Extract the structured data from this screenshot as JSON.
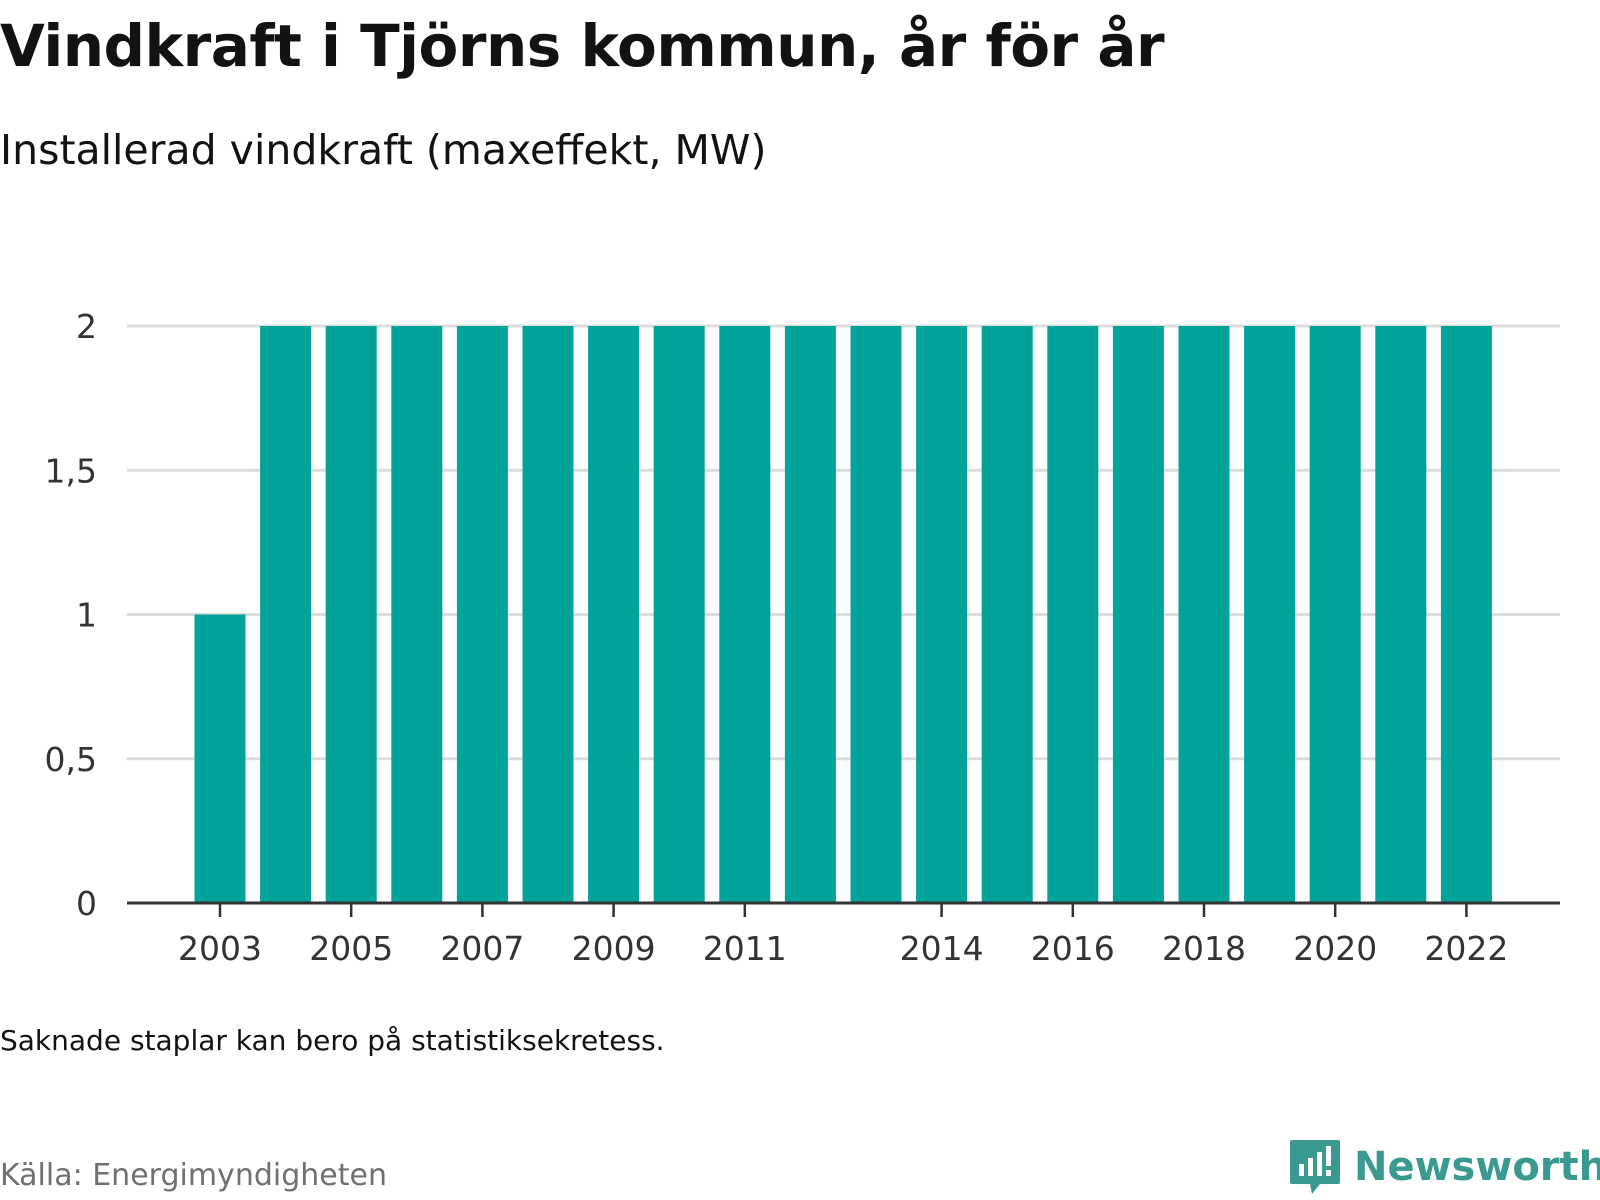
{
  "title": "Vindkraft i Tjörns kommun, år för år",
  "subtitle": "Installerad vindkraft (maxeffekt, MW)",
  "note": "Saknade staplar kan bero på statistiksekretess.",
  "source": "Källa: Energimyndigheten",
  "logo": {
    "text": "Newsworthy",
    "icon": "bar-chart-speech-icon",
    "color": "#3a9a8f"
  },
  "colors": {
    "bar": "#00a39a",
    "grid": "#dcdcdc",
    "axis": "#333333"
  },
  "chart_data": {
    "type": "bar",
    "categories": [
      "2003",
      "2004",
      "2005",
      "2006",
      "2007",
      "2008",
      "2009",
      "2010",
      "2011",
      "2012",
      "2013",
      "2014",
      "2015",
      "2016",
      "2017",
      "2018",
      "2019",
      "2020",
      "2021",
      "2022"
    ],
    "values": [
      1,
      2,
      2,
      2,
      2,
      2,
      2,
      2,
      2,
      2,
      2,
      2,
      2,
      2,
      2,
      2,
      2,
      2,
      2,
      2
    ],
    "xtick_labels": [
      "2003",
      "2005",
      "2007",
      "2009",
      "2011",
      "2014",
      "2016",
      "2018",
      "2020",
      "2022"
    ],
    "yticks": [
      {
        "value": 0,
        "label": "0"
      },
      {
        "value": 0.5,
        "label": "0,5"
      },
      {
        "value": 1,
        "label": "1"
      },
      {
        "value": 1.5,
        "label": "1,5"
      },
      {
        "value": 2,
        "label": "2"
      }
    ],
    "ylim": [
      0,
      2
    ],
    "grid": true,
    "xlabel": "",
    "ylabel": ""
  }
}
